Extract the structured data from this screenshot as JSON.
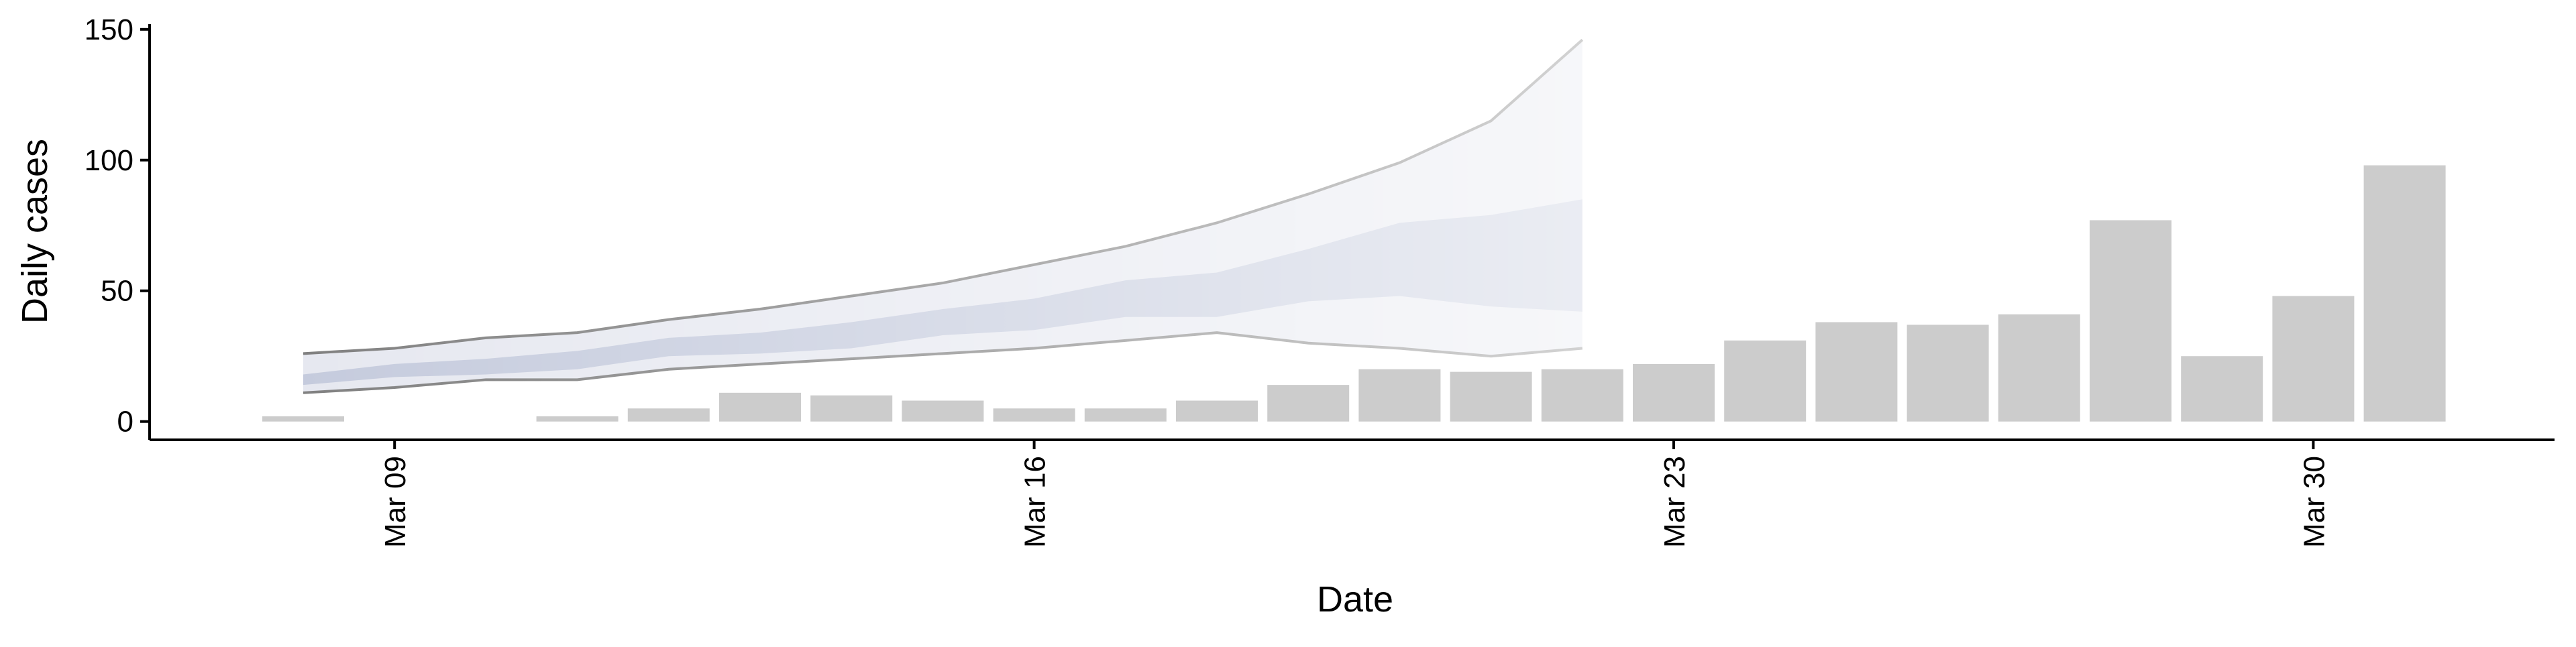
{
  "chart_data": {
    "type": "bar",
    "x_label": "Date",
    "y_label": "Daily cases",
    "x": [
      "Mar 08",
      "Mar 09",
      "Mar 10",
      "Mar 11",
      "Mar 12",
      "Mar 13",
      "Mar 14",
      "Mar 15",
      "Mar 16",
      "Mar 17",
      "Mar 18",
      "Mar 19",
      "Mar 20",
      "Mar 21",
      "Mar 22",
      "Mar 23",
      "Mar 24",
      "Mar 25",
      "Mar 26",
      "Mar 27",
      "Mar 28",
      "Mar 29",
      "Mar 30",
      "Mar 31"
    ],
    "values": [
      2,
      null,
      null,
      2,
      5,
      11,
      10,
      8,
      5,
      5,
      8,
      14,
      20,
      19,
      20,
      22,
      31,
      38,
      37,
      41,
      77,
      25,
      48,
      98
    ],
    "color": "#cccccc",
    "bands": [
      {
        "x": [
          "Mar 08",
          "Mar 09",
          "Mar 10",
          "Mar 11",
          "Mar 12",
          "Mar 13",
          "Mar 14",
          "Mar 15",
          "Mar 16",
          "Mar 17",
          "Mar 18",
          "Mar 19",
          "Mar 20",
          "Mar 21",
          "Mar 22"
        ],
        "lower": [
          11,
          13,
          16,
          16,
          20,
          22,
          24,
          26,
          28,
          31,
          34,
          30,
          28,
          25,
          28
        ],
        "upper": [
          26,
          28,
          32,
          34,
          39,
          43,
          48,
          53,
          60,
          67,
          76,
          87,
          99,
          115,
          146
        ],
        "color": "#e6e8f0"
      },
      {
        "x": [
          "Mar 08",
          "Mar 09",
          "Mar 10",
          "Mar 11",
          "Mar 12",
          "Mar 13",
          "Mar 14",
          "Mar 15",
          "Mar 16",
          "Mar 17",
          "Mar 18",
          "Mar 19",
          "Mar 20",
          "Mar 21",
          "Mar 22"
        ],
        "lower": [
          14,
          17,
          18,
          20,
          25,
          26,
          28,
          33,
          35,
          40,
          40,
          46,
          48,
          44,
          42
        ],
        "upper": [
          18,
          22,
          24,
          27,
          32,
          34,
          38,
          43,
          47,
          54,
          57,
          66,
          76,
          79,
          85
        ],
        "color": "#c5cbdd"
      }
    ],
    "line_color": "#808080",
    "ylim": [
      -7,
      152
    ],
    "yticks": [
      0,
      50,
      100,
      150
    ],
    "xticks": [
      "Mar 09",
      "Mar 16",
      "Mar 23",
      "Mar 30"
    ]
  }
}
